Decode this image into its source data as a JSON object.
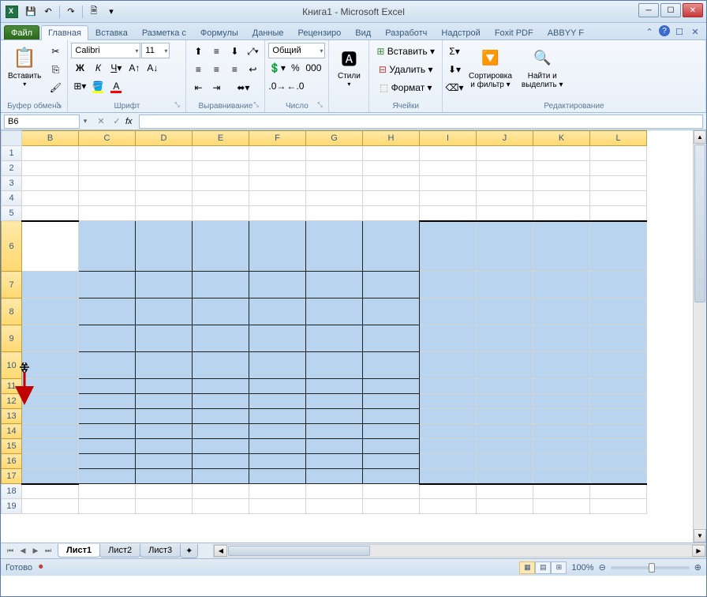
{
  "window": {
    "title": "Книга1 - Microsoft Excel"
  },
  "qat": {
    "save": "💾",
    "undo": "↶",
    "redo": "↷",
    "new": "🗎"
  },
  "tabs": {
    "file": "Файл",
    "home": "Главная",
    "insert": "Вставка",
    "pageLayout": "Разметка с",
    "formulas": "Формулы",
    "data": "Данные",
    "review": "Рецензиро",
    "view": "Вид",
    "developer": "Разработч",
    "addins": "Надстрой",
    "foxit": "Foxit PDF",
    "abbyy": "ABBYY F"
  },
  "ribbon": {
    "clipboard": {
      "paste": "Вставить",
      "label": "Буфер обмена"
    },
    "font": {
      "name": "Calibri",
      "size": "11",
      "label": "Шрифт"
    },
    "alignment": {
      "label": "Выравнивание"
    },
    "number": {
      "format": "Общий",
      "label": "Число"
    },
    "styles": {
      "btn": "Стили",
      "label": ""
    },
    "cells": {
      "insert": "Вставить ▾",
      "delete": "Удалить ▾",
      "format": "Формат ▾",
      "label": "Ячейки"
    },
    "editing": {
      "sort": "Сортировка\nи фильтр ▾",
      "find": "Найти и\nвыделить ▾",
      "label": "Редактирование"
    }
  },
  "nameBox": "B6",
  "columns": [
    "B",
    "C",
    "D",
    "E",
    "F",
    "G",
    "H",
    "I",
    "J",
    "K",
    "L"
  ],
  "rows": [
    1,
    2,
    3,
    4,
    5,
    6,
    7,
    8,
    9,
    10,
    11,
    12,
    13,
    14,
    15,
    16,
    17,
    18,
    19
  ],
  "selection": {
    "activeCell": "B6",
    "rangeRows": [
      6,
      17
    ],
    "rangeColsAll": true,
    "tallRows": [
      6,
      7,
      8,
      9,
      10
    ],
    "shortRows": [
      11,
      12,
      13
    ],
    "darkBorderedCols": [
      "C",
      "D",
      "E",
      "F",
      "G",
      "H"
    ]
  },
  "sheetTabs": {
    "sheet1": "Лист1",
    "sheet2": "Лист2",
    "sheet3": "Лист3"
  },
  "status": {
    "ready": "Готово",
    "zoom": "100%"
  },
  "colors": {
    "selection": "#b8d4ee",
    "headerSel": "#ffd870",
    "border": "#d4d4d4",
    "ribbonBg": "#e8f0f8"
  }
}
